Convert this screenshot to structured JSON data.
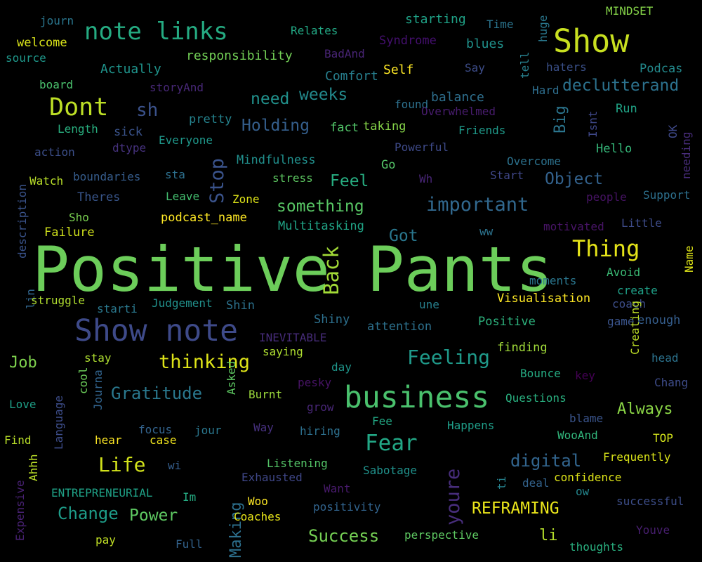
{
  "words": [
    {
      "text": "Positive Pants",
      "color": "#6ccd5a",
      "rotated": false
    },
    {
      "text": "Show note",
      "color": "#3e4a89",
      "rotated": false
    },
    {
      "text": "business",
      "color": "#4ac16d",
      "rotated": false
    },
    {
      "text": "note links",
      "color": "#25ab82",
      "rotated": false
    },
    {
      "text": "Show",
      "color": "#c8e020",
      "rotated": false
    },
    {
      "text": "Dont",
      "color": "#bddf26",
      "rotated": false
    },
    {
      "text": "Back",
      "color": "#a2da37",
      "rotated": true
    },
    {
      "text": "Stop",
      "color": "#3a538b",
      "rotated": true
    },
    {
      "text": "important",
      "color": "#31688e",
      "rotated": false
    },
    {
      "text": "Thing",
      "color": "#e5e419",
      "rotated": false
    },
    {
      "text": "thinking",
      "color": "#dde318",
      "rotated": false
    },
    {
      "text": "Feeling",
      "color": "#1f9a8a",
      "rotated": false
    },
    {
      "text": "Fear",
      "color": "#22a785",
      "rotated": false
    },
    {
      "text": "youre",
      "color": "#472d7b",
      "rotated": true
    },
    {
      "text": "Gratitude",
      "color": "#2a788e",
      "rotated": false
    },
    {
      "text": "Life",
      "color": "#d2e21b",
      "rotated": false
    },
    {
      "text": "sh",
      "color": "#3b528b",
      "rotated": false
    },
    {
      "text": "declutterand",
      "color": "#2c728e",
      "rotated": false
    },
    {
      "text": "Holding",
      "color": "#355f8d",
      "rotated": false
    },
    {
      "text": "weeks",
      "color": "#238a8d",
      "rotated": false
    },
    {
      "text": "need",
      "color": "#21918c",
      "rotated": false
    },
    {
      "text": "something",
      "color": "#58c765",
      "rotated": false
    },
    {
      "text": "Object",
      "color": "#33628d",
      "rotated": false
    },
    {
      "text": "Feel",
      "color": "#27ad81",
      "rotated": false
    },
    {
      "text": "Got",
      "color": "#2a778e",
      "rotated": false
    },
    {
      "text": "digital",
      "color": "#32658e",
      "rotated": false
    },
    {
      "text": "REFRAMING",
      "color": "#eae51a",
      "rotated": false
    },
    {
      "text": "Change",
      "color": "#1e9d89",
      "rotated": false
    },
    {
      "text": "Power",
      "color": "#5ec962",
      "rotated": false
    },
    {
      "text": "Success",
      "color": "#75d054",
      "rotated": false
    },
    {
      "text": "Job",
      "color": "#7fd34e",
      "rotated": false
    },
    {
      "text": "Always",
      "color": "#8bd646",
      "rotated": false
    },
    {
      "text": "li",
      "color": "#b5de2b",
      "rotated": false
    },
    {
      "text": "Making",
      "color": "#2d708e",
      "rotated": true
    },
    {
      "text": "Big",
      "color": "#2b758e",
      "rotated": true
    },
    {
      "text": "MINDSET",
      "color": "#86d549",
      "rotated": false
    },
    {
      "text": "journ",
      "color": "#2a768e",
      "rotated": false
    },
    {
      "text": "Relates",
      "color": "#22a884",
      "rotated": false
    },
    {
      "text": "starting",
      "color": "#1fa287",
      "rotated": false
    },
    {
      "text": "Time",
      "color": "#2b748e",
      "rotated": false
    },
    {
      "text": "huge",
      "color": "#2a788e",
      "rotated": true
    },
    {
      "text": "welcome",
      "color": "#d8e219",
      "rotated": false
    },
    {
      "text": "source",
      "color": "#1f988b",
      "rotated": false
    },
    {
      "text": "responsibility",
      "color": "#73d056",
      "rotated": false
    },
    {
      "text": "BadAnd",
      "color": "#482475",
      "rotated": false
    },
    {
      "text": "Syndrome",
      "color": "#440f6e",
      "rotated": false
    },
    {
      "text": "blues",
      "color": "#20928c",
      "rotated": false
    },
    {
      "text": "tell",
      "color": "#27808e",
      "rotated": true
    },
    {
      "text": "haters",
      "color": "#3b518b",
      "rotated": false
    },
    {
      "text": "Podcas",
      "color": "#238a8d",
      "rotated": false
    },
    {
      "text": "Actually",
      "color": "#1f948c",
      "rotated": false
    },
    {
      "text": "Comfort",
      "color": "#277f8e",
      "rotated": false
    },
    {
      "text": "Self",
      "color": "#fde725",
      "rotated": false
    },
    {
      "text": "Say",
      "color": "#3d4d8a",
      "rotated": false
    },
    {
      "text": "board",
      "color": "#4ac16d",
      "rotated": false
    },
    {
      "text": "storyAnd",
      "color": "#482878",
      "rotated": false
    },
    {
      "text": "balance",
      "color": "#2e6f8e",
      "rotated": false
    },
    {
      "text": "Hard",
      "color": "#2e6e8e",
      "rotated": false
    },
    {
      "text": "found",
      "color": "#2d718e",
      "rotated": false
    },
    {
      "text": "Overwhelmed",
      "color": "#481c6e",
      "rotated": false
    },
    {
      "text": "Run",
      "color": "#20a486",
      "rotated": false
    },
    {
      "text": "Length",
      "color": "#29af7f",
      "rotated": false
    },
    {
      "text": "sick",
      "color": "#3a538b",
      "rotated": false
    },
    {
      "text": "pretty",
      "color": "#25838e",
      "rotated": false
    },
    {
      "text": "fact",
      "color": "#52c569",
      "rotated": false
    },
    {
      "text": "taking",
      "color": "#86d549",
      "rotated": false
    },
    {
      "text": "Friends",
      "color": "#1f9a8a",
      "rotated": false
    },
    {
      "text": "Isnt",
      "color": "#3f4889",
      "rotated": true
    },
    {
      "text": "OK",
      "color": "#3e4989",
      "rotated": true
    },
    {
      "text": "action",
      "color": "#3c4f8a",
      "rotated": false
    },
    {
      "text": "dtype",
      "color": "#46327e",
      "rotated": false
    },
    {
      "text": "Everyone",
      "color": "#1f988b",
      "rotated": false
    },
    {
      "text": "Powerful",
      "color": "#3e4a89",
      "rotated": false
    },
    {
      "text": "Hello",
      "color": "#35b779",
      "rotated": false
    },
    {
      "text": "needing",
      "color": "#472c7a",
      "rotated": true
    },
    {
      "text": "Mindfulness",
      "color": "#21908d",
      "rotated": false
    },
    {
      "text": "Overcome",
      "color": "#2c728e",
      "rotated": false
    },
    {
      "text": "Go",
      "color": "#54c568",
      "rotated": false
    },
    {
      "text": "boundaries",
      "color": "#365d8d",
      "rotated": false
    },
    {
      "text": "sta",
      "color": "#2d708e",
      "rotated": false
    },
    {
      "text": "stress",
      "color": "#5ec962",
      "rotated": false
    },
    {
      "text": "Wh",
      "color": "#482576",
      "rotated": false
    },
    {
      "text": "Start",
      "color": "#3f4788",
      "rotated": false
    },
    {
      "text": "Watch",
      "color": "#b8de29",
      "rotated": false
    },
    {
      "text": "description",
      "color": "#3a538b",
      "rotated": true
    },
    {
      "text": "Theres",
      "color": "#39568c",
      "rotated": false
    },
    {
      "text": "Leave",
      "color": "#44bf70",
      "rotated": false
    },
    {
      "text": "Zone",
      "color": "#dde318",
      "rotated": false
    },
    {
      "text": "people",
      "color": "#471365",
      "rotated": false
    },
    {
      "text": "Support",
      "color": "#2d708e",
      "rotated": false
    },
    {
      "text": "Sho",
      "color": "#7ad151",
      "rotated": false
    },
    {
      "text": "podcast_name",
      "color": "#fde725",
      "rotated": false
    },
    {
      "text": "Multitasking",
      "color": "#20a486",
      "rotated": false
    },
    {
      "text": "ww",
      "color": "#2c738e",
      "rotated": false
    },
    {
      "text": "motivated",
      "color": "#481467",
      "rotated": false
    },
    {
      "text": "Little",
      "color": "#3e4c8a",
      "rotated": false
    },
    {
      "text": "Failure",
      "color": "#d0e11c",
      "rotated": false
    },
    {
      "text": "Name",
      "color": "#dde318",
      "rotated": true
    },
    {
      "text": "Avoid",
      "color": "#3bbb75",
      "rotated": false
    },
    {
      "text": "moments",
      "color": "#2a768e",
      "rotated": false
    },
    {
      "text": "create",
      "color": "#1fa088",
      "rotated": false
    },
    {
      "text": "lin",
      "color": "#31668e",
      "rotated": true
    },
    {
      "text": "struggle",
      "color": "#b0dd2f",
      "rotated": false
    },
    {
      "text": "starti",
      "color": "#2a788e",
      "rotated": false
    },
    {
      "text": "Judgement",
      "color": "#21918c",
      "rotated": false
    },
    {
      "text": "Shin",
      "color": "#2c728e",
      "rotated": false
    },
    {
      "text": "Visualisation",
      "color": "#fde725",
      "rotated": false
    },
    {
      "text": "coach",
      "color": "#3d4e8a",
      "rotated": false
    },
    {
      "text": "Shiny",
      "color": "#2d708e",
      "rotated": false
    },
    {
      "text": "une",
      "color": "#27808e",
      "rotated": false
    },
    {
      "text": "attention",
      "color": "#2d718e",
      "rotated": false
    },
    {
      "text": "Positive",
      "color": "#2db27d",
      "rotated": false
    },
    {
      "text": "game",
      "color": "#3a548c",
      "rotated": false
    },
    {
      "text": "enough",
      "color": "#355e8d",
      "rotated": false
    },
    {
      "text": "INEVITABLE",
      "color": "#472c7a",
      "rotated": false
    },
    {
      "text": "saying",
      "color": "#addc30",
      "rotated": false
    },
    {
      "text": "finding",
      "color": "#a0da39",
      "rotated": false
    },
    {
      "text": "Creating",
      "color": "#bddf26",
      "rotated": true
    },
    {
      "text": "head",
      "color": "#2c738e",
      "rotated": false
    },
    {
      "text": "stay",
      "color": "#addc30",
      "rotated": false
    },
    {
      "text": "day",
      "color": "#1f968b",
      "rotated": false
    },
    {
      "text": "Bounce",
      "color": "#25ab82",
      "rotated": false
    },
    {
      "text": "key",
      "color": "#440154",
      "rotated": false
    },
    {
      "text": "Chang",
      "color": "#3e4c8a",
      "rotated": false
    },
    {
      "text": "cool",
      "color": "#6ccd5a",
      "rotated": true
    },
    {
      "text": "Journa",
      "color": "#32648e",
      "rotated": true
    },
    {
      "text": "Asked",
      "color": "#5ec962",
      "rotated": true
    },
    {
      "text": "Burnt",
      "color": "#9bd93c",
      "rotated": false
    },
    {
      "text": "pesky",
      "color": "#471365",
      "rotated": false
    },
    {
      "text": "Questions",
      "color": "#29af7f",
      "rotated": false
    },
    {
      "text": "Love",
      "color": "#1fa088",
      "rotated": false
    },
    {
      "text": "Language",
      "color": "#3d4d8a",
      "rotated": true
    },
    {
      "text": "grow",
      "color": "#482677",
      "rotated": false
    },
    {
      "text": "Fee",
      "color": "#22a884",
      "rotated": false
    },
    {
      "text": "blame",
      "color": "#3a548c",
      "rotated": false
    },
    {
      "text": "Way",
      "color": "#46307e",
      "rotated": false
    },
    {
      "text": "hiring",
      "color": "#2d708e",
      "rotated": false
    },
    {
      "text": "Happens",
      "color": "#1f9e89",
      "rotated": false
    },
    {
      "text": "WooAnd",
      "color": "#31b57b",
      "rotated": false
    },
    {
      "text": "TOP",
      "color": "#d2e21b",
      "rotated": false
    },
    {
      "text": "Find",
      "color": "#b8de29",
      "rotated": false
    },
    {
      "text": "hear",
      "color": "#fde725",
      "rotated": false
    },
    {
      "text": "focus",
      "color": "#33638d",
      "rotated": false
    },
    {
      "text": "case",
      "color": "#f1e51d",
      "rotated": false
    },
    {
      "text": "jour",
      "color": "#2a778e",
      "rotated": false
    },
    {
      "text": "Ahhh",
      "color": "#bade28",
      "rotated": true
    },
    {
      "text": "Frequently",
      "color": "#d8e219",
      "rotated": false
    },
    {
      "text": "Expensive",
      "color": "#482173",
      "rotated": true
    },
    {
      "text": "wi",
      "color": "#355e8d",
      "rotated": false
    },
    {
      "text": "Listening",
      "color": "#54c568",
      "rotated": false
    },
    {
      "text": "Sabotage",
      "color": "#20928c",
      "rotated": false
    },
    {
      "text": "Exhausted",
      "color": "#3f4788",
      "rotated": false
    },
    {
      "text": "ti",
      "color": "#26828e",
      "rotated": true
    },
    {
      "text": "deal",
      "color": "#33638d",
      "rotated": false
    },
    {
      "text": "confidence",
      "color": "#dde318",
      "rotated": false
    },
    {
      "text": "ow",
      "color": "#24878e",
      "rotated": false
    },
    {
      "text": "ENTREPRENEURIAL",
      "color": "#1fa287",
      "rotated": false
    },
    {
      "text": "Want",
      "color": "#481a6c",
      "rotated": false
    },
    {
      "text": "Im",
      "color": "#25ab82",
      "rotated": false
    },
    {
      "text": "Woo",
      "color": "#fde725",
      "rotated": false
    },
    {
      "text": "positivity",
      "color": "#32648e",
      "rotated": false
    },
    {
      "text": "successful",
      "color": "#3d4e8a",
      "rotated": false
    },
    {
      "text": "Coaches",
      "color": "#e7e419",
      "rotated": false
    },
    {
      "text": "Youve",
      "color": "#481f70",
      "rotated": false
    },
    {
      "text": "pay",
      "color": "#c0df25",
      "rotated": false
    },
    {
      "text": "Full",
      "color": "#33638d",
      "rotated": false
    },
    {
      "text": "perspective",
      "color": "#5ec962",
      "rotated": false
    },
    {
      "text": "thoughts",
      "color": "#29af7f",
      "rotated": false
    }
  ]
}
